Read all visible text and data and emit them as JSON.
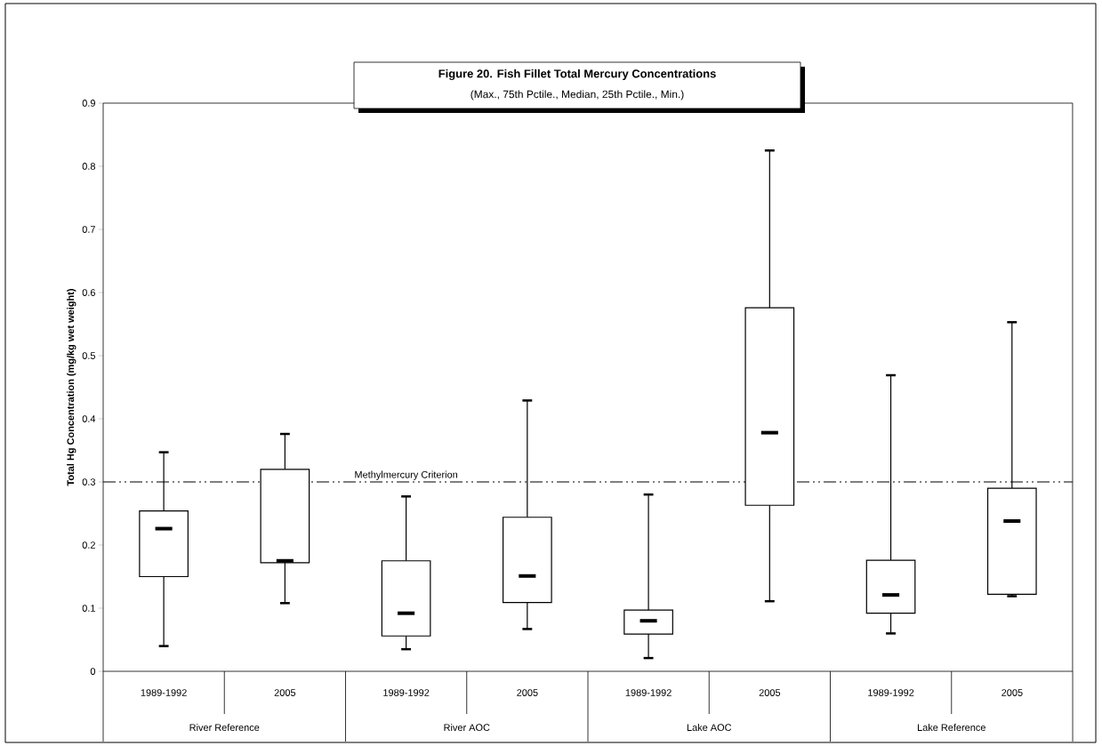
{
  "chart_data": {
    "type": "box",
    "title": "Figure 20.  Fish Fillet Total Mercury Concentrations",
    "subtitle": "(Max., 75th Pctile., Median, 25th Pctile., Min.)",
    "ylabel": "Total Hg Concentration (mg/kg wet weight)",
    "categories": [
      "1989-1992",
      "2005",
      "1989-1992",
      "2005",
      "1989-1992",
      "2005",
      "1989-1992",
      "2005"
    ],
    "boxes": [
      {
        "low": 0.04,
        "q1": 0.15,
        "median": 0.226,
        "q3": 0.254,
        "high": 0.347
      },
      {
        "low": 0.108,
        "q1": 0.172,
        "median": 0.175,
        "q3": 0.32,
        "high": 0.376
      },
      {
        "low": 0.035,
        "q1": 0.056,
        "median": 0.092,
        "q3": 0.175,
        "high": 0.277
      },
      {
        "low": 0.067,
        "q1": 0.109,
        "median": 0.151,
        "q3": 0.244,
        "high": 0.429
      },
      {
        "low": 0.021,
        "q1": 0.059,
        "median": 0.08,
        "q3": 0.097,
        "high": 0.28
      },
      {
        "low": 0.111,
        "q1": 0.263,
        "median": 0.378,
        "q3": 0.576,
        "high": 0.825
      },
      {
        "low": 0.06,
        "q1": 0.092,
        "median": 0.121,
        "q3": 0.176,
        "high": 0.469
      },
      {
        "low": 0.119,
        "q1": 0.122,
        "median": 0.238,
        "q3": 0.29,
        "high": 0.553
      }
    ],
    "ylim": [
      0,
      0.9
    ],
    "yticks": [
      0,
      0.1,
      0.2,
      0.3,
      0.4,
      0.5,
      0.6,
      0.7,
      0.8,
      0.9
    ],
    "ref_lines": [
      {
        "axis": "y",
        "value": 0.3,
        "label": "Methylmercury Criterion",
        "line_style": "dashdotdot"
      }
    ],
    "annotations": [
      "River Reference",
      "River AOC",
      "Lake AOC",
      "Lake Reference"
    ]
  }
}
